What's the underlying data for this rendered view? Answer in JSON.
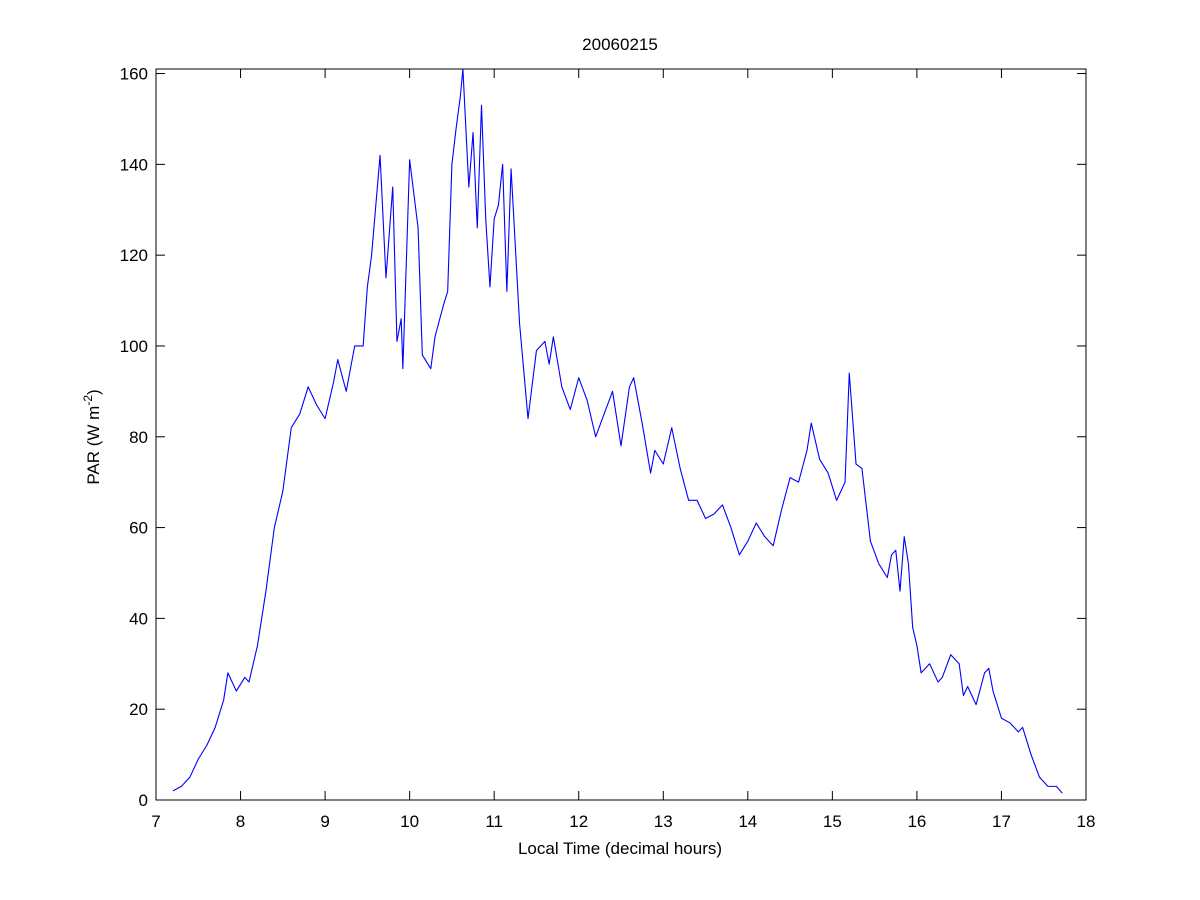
{
  "chart_data": {
    "type": "line",
    "title": "20060215",
    "x_label": "Local Time (decimal hours)",
    "y_label": {
      "text": "PAR (W m",
      "superscript": "-2",
      "suffix": ")"
    },
    "xlim": [
      7,
      18
    ],
    "xticks": [
      7,
      8,
      9,
      10,
      11,
      12,
      13,
      14,
      15,
      16,
      17,
      18
    ],
    "ylim": [
      0,
      161
    ],
    "yticks": [
      0,
      20,
      40,
      60,
      80,
      100,
      120,
      140,
      160
    ],
    "grid": false,
    "x": [
      7.2,
      7.3,
      7.4,
      7.5,
      7.6,
      7.7,
      7.8,
      7.85,
      7.95,
      8.05,
      8.1,
      8.2,
      8.3,
      8.4,
      8.5,
      8.6,
      8.7,
      8.8,
      8.9,
      9.0,
      9.1,
      9.15,
      9.25,
      9.35,
      9.45,
      9.5,
      9.55,
      9.65,
      9.72,
      9.8,
      9.85,
      9.9,
      9.92,
      10.0,
      10.1,
      10.15,
      10.25,
      10.3,
      10.4,
      10.45,
      10.5,
      10.55,
      10.6,
      10.63,
      10.7,
      10.75,
      10.8,
      10.85,
      10.9,
      10.95,
      11.0,
      11.05,
      11.1,
      11.15,
      11.2,
      11.3,
      11.4,
      11.5,
      11.6,
      11.65,
      11.7,
      11.8,
      11.9,
      12.0,
      12.1,
      12.2,
      12.3,
      12.4,
      12.5,
      12.6,
      12.65,
      12.75,
      12.85,
      12.9,
      13.0,
      13.1,
      13.2,
      13.3,
      13.4,
      13.5,
      13.6,
      13.7,
      13.8,
      13.9,
      14.0,
      14.1,
      14.2,
      14.3,
      14.4,
      14.5,
      14.6,
      14.7,
      14.75,
      14.85,
      14.95,
      15.05,
      15.15,
      15.2,
      15.28,
      15.35,
      15.45,
      15.55,
      15.65,
      15.7,
      15.75,
      15.8,
      15.85,
      15.9,
      15.95,
      16.0,
      16.05,
      16.15,
      16.25,
      16.3,
      16.4,
      16.5,
      16.55,
      16.6,
      16.7,
      16.8,
      16.85,
      16.9,
      17.0,
      17.1,
      17.2,
      17.25,
      17.35,
      17.45,
      17.55,
      17.65,
      17.72
    ],
    "series": [
      {
        "color": "#0000ff",
        "values": [
          2,
          3,
          5,
          9,
          12,
          16,
          22,
          28,
          24,
          27,
          26,
          34,
          46,
          60,
          68,
          82,
          85,
          91,
          87,
          84,
          92,
          97,
          90,
          100,
          100,
          113,
          120,
          142,
          115,
          135,
          101,
          106,
          95,
          141,
          126,
          98,
          95,
          102,
          109,
          112,
          140,
          148,
          155,
          161,
          135,
          147,
          126,
          153,
          128,
          113,
          128,
          131,
          140,
          112,
          139,
          105,
          84,
          99,
          101,
          96,
          102,
          91,
          86,
          93,
          88,
          80,
          85,
          90,
          78,
          91,
          93,
          83,
          72,
          77,
          74,
          82,
          73,
          66,
          66,
          62,
          63,
          65,
          60,
          54,
          57,
          61,
          58,
          56,
          64,
          71,
          70,
          77,
          83,
          75,
          72,
          66,
          70,
          94,
          74,
          73,
          57,
          52,
          49,
          54,
          55,
          46,
          58,
          52,
          38,
          34,
          28,
          30,
          26,
          27,
          32,
          30,
          23,
          25,
          21,
          28,
          29,
          24,
          18,
          17,
          15,
          16,
          10,
          5,
          3,
          3,
          1.5
        ]
      }
    ]
  }
}
